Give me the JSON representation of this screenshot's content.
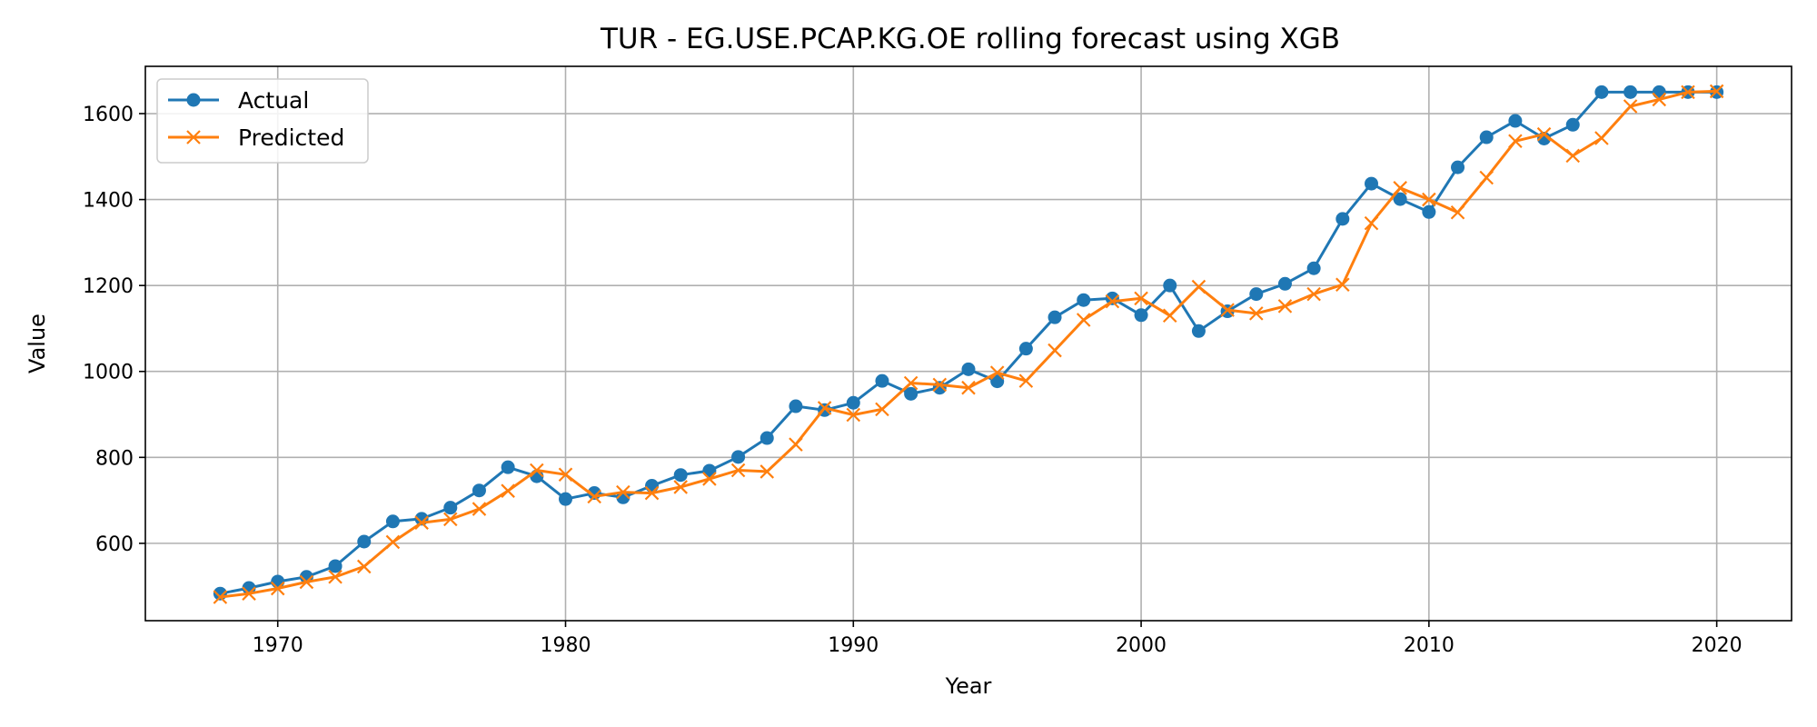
{
  "chart_data": {
    "type": "line",
    "title": "TUR - EG.USE.PCAP.KG.OE rolling forecast using XGB",
    "xlabel": "Year",
    "ylabel": "Value",
    "xlim": [
      1965.4,
      2022.6
    ],
    "ylim": [
      420,
      1710
    ],
    "xticks": [
      1970,
      1980,
      1990,
      2000,
      2010,
      2020
    ],
    "yticks": [
      600,
      800,
      1000,
      1200,
      1400,
      1600
    ],
    "grid": true,
    "legend_position": "upper-left",
    "x": [
      1968,
      1969,
      1970,
      1971,
      1972,
      1973,
      1974,
      1975,
      1976,
      1977,
      1978,
      1979,
      1980,
      1981,
      1982,
      1983,
      1984,
      1985,
      1986,
      1987,
      1988,
      1989,
      1990,
      1991,
      1992,
      1993,
      1994,
      1995,
      1996,
      1997,
      1998,
      1999,
      2000,
      2001,
      2002,
      2003,
      2004,
      2005,
      2006,
      2007,
      2008,
      2009,
      2010,
      2011,
      2012,
      2013,
      2014,
      2015,
      2016,
      2017,
      2018,
      2019,
      2020
    ],
    "series": [
      {
        "name": "Actual",
        "color": "#1f77b4",
        "marker": "circle",
        "values": [
          483,
          496,
          511,
          522,
          547,
          604,
          651,
          657,
          683,
          723,
          777,
          756,
          703,
          717,
          707,
          734,
          759,
          769,
          801,
          845,
          919,
          910,
          927,
          978,
          948,
          962,
          1005,
          977,
          1053,
          1126,
          1166,
          1170,
          1131,
          1200,
          1094,
          1140,
          1180,
          1204,
          1240,
          1355,
          1437,
          1401,
          1371,
          1475,
          1545,
          1583,
          1542,
          1574,
          1650,
          1650,
          1650,
          1650,
          1650
        ]
      },
      {
        "name": "Predicted",
        "color": "#ff7f0e",
        "marker": "x",
        "values": [
          475,
          483,
          495,
          510,
          522,
          546,
          603,
          648,
          656,
          680,
          722,
          770,
          760,
          709,
          719,
          717,
          731,
          750,
          770,
          767,
          830,
          915,
          899,
          912,
          973,
          969,
          962,
          997,
          978,
          1049,
          1120,
          1163,
          1170,
          1130,
          1197,
          1143,
          1135,
          1152,
          1180,
          1202,
          1345,
          1427,
          1400,
          1370,
          1451,
          1536,
          1552,
          1502,
          1543,
          1617,
          1633,
          1650,
          1652
        ]
      }
    ]
  }
}
